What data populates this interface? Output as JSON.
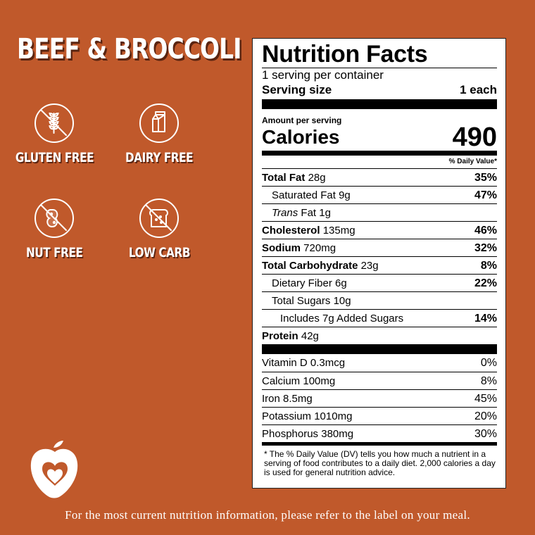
{
  "page": {
    "title": "BEEF & BROCCOLI",
    "footer_note": "For the most current nutrition information, please refer to the label on your meal."
  },
  "badges": [
    {
      "label": "GLUTEN FREE",
      "icon": "wheat-crossed-icon"
    },
    {
      "label": "DAIRY FREE",
      "icon": "milk-carton-icon"
    },
    {
      "label": "NUT FREE",
      "icon": "peanut-crossed-icon"
    },
    {
      "label": "LOW CARB",
      "icon": "bread-crossed-icon"
    }
  ],
  "nutrition": {
    "title": "Nutrition Facts",
    "servings_per_container": "1 serving per container",
    "serving_size_label": "Serving size",
    "serving_size_value": "1 each",
    "amount_per_serving": "Amount per serving",
    "calories_label": "Calories",
    "calories_value": "490",
    "daily_value_header": "% Daily Value*",
    "rows": [
      {
        "label": "Total Fat",
        "amount": "28g",
        "dv": "35%"
      },
      {
        "label": "Saturated Fat",
        "amount": "9g",
        "dv": "47%"
      },
      {
        "label": "Trans",
        "label_suffix": "Fat",
        "amount": "1g",
        "dv": ""
      },
      {
        "label": "Cholesterol",
        "amount": "135mg",
        "dv": "46%"
      },
      {
        "label": "Sodium",
        "amount": "720mg",
        "dv": "32%"
      },
      {
        "label": "Total Carbohydrate",
        "amount": "23g",
        "dv": "8%"
      },
      {
        "label": "Dietary Fiber",
        "amount": "6g",
        "dv": "22%"
      },
      {
        "label": "Total Sugars",
        "amount": "10g",
        "dv": ""
      },
      {
        "label": "Includes 7g Added Sugars",
        "amount": "",
        "dv": "14%"
      },
      {
        "label": "Protein",
        "amount": "42g",
        "dv": ""
      }
    ],
    "vitamins": [
      {
        "label": "Vitamin D",
        "amount": "0.3mcg",
        "dv": "0%"
      },
      {
        "label": "Calcium",
        "amount": "100mg",
        "dv": "8%"
      },
      {
        "label": "Iron",
        "amount": "8.5mg",
        "dv": "45%"
      },
      {
        "label": "Potassium",
        "amount": "1010mg",
        "dv": "20%"
      },
      {
        "label": "Phosphorus",
        "amount": "380mg",
        "dv": "30%"
      }
    ],
    "footnote": "* The % Daily Value (DV) tells you how much a nutrient in a serving of food contributes to a daily diet. 2,000 calories a day is used for general nutrition advice."
  },
  "colors": {
    "background": "#c0592b",
    "panel": "#ffffff",
    "text_shadow": "#5a2410"
  },
  "logo": {
    "icon": "apple-heart-logo-icon"
  }
}
